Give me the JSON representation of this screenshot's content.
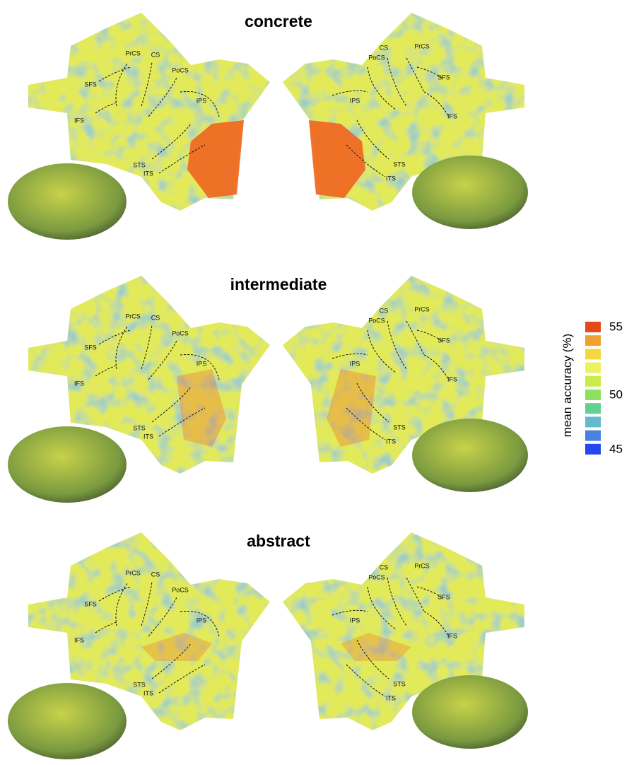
{
  "panels": [
    {
      "title": "concrete",
      "left_labels": [
        "PrCS",
        "CS",
        "PoCS",
        "SFS",
        "IPS",
        "IFS",
        "STS",
        "ITS"
      ],
      "right_labels": [
        "CS",
        "PrCS",
        "PoCS",
        "SFS",
        "IPS",
        "IFS",
        "STS",
        "ITS"
      ]
    },
    {
      "title": "intermediate",
      "left_labels": [
        "PrCS",
        "CS",
        "PoCS",
        "SFS",
        "IPS",
        "IFS",
        "STS",
        "ITS"
      ],
      "right_labels": [
        "CS",
        "PrCS",
        "PoCS",
        "SFS",
        "IPS",
        "IFS",
        "STS",
        "ITS"
      ]
    },
    {
      "title": "abstract",
      "left_labels": [
        "PrCS",
        "CS",
        "PoCS",
        "SFS",
        "IPS",
        "IFS",
        "STS",
        "ITS"
      ],
      "right_labels": [
        "CS",
        "PrCS",
        "PoCS",
        "SFS",
        "IPS",
        "IFS",
        "STS",
        "ITS"
      ]
    }
  ],
  "colorbar": {
    "label": "mean accuracy (%)",
    "ticks": [
      55,
      50,
      45
    ],
    "colors": [
      "#e64a19",
      "#f0a030",
      "#f5d840",
      "#eef060",
      "#c8ec4a",
      "#8ee060",
      "#62d08e",
      "#66b8cc",
      "#4a80e0",
      "#2448f0"
    ]
  }
}
